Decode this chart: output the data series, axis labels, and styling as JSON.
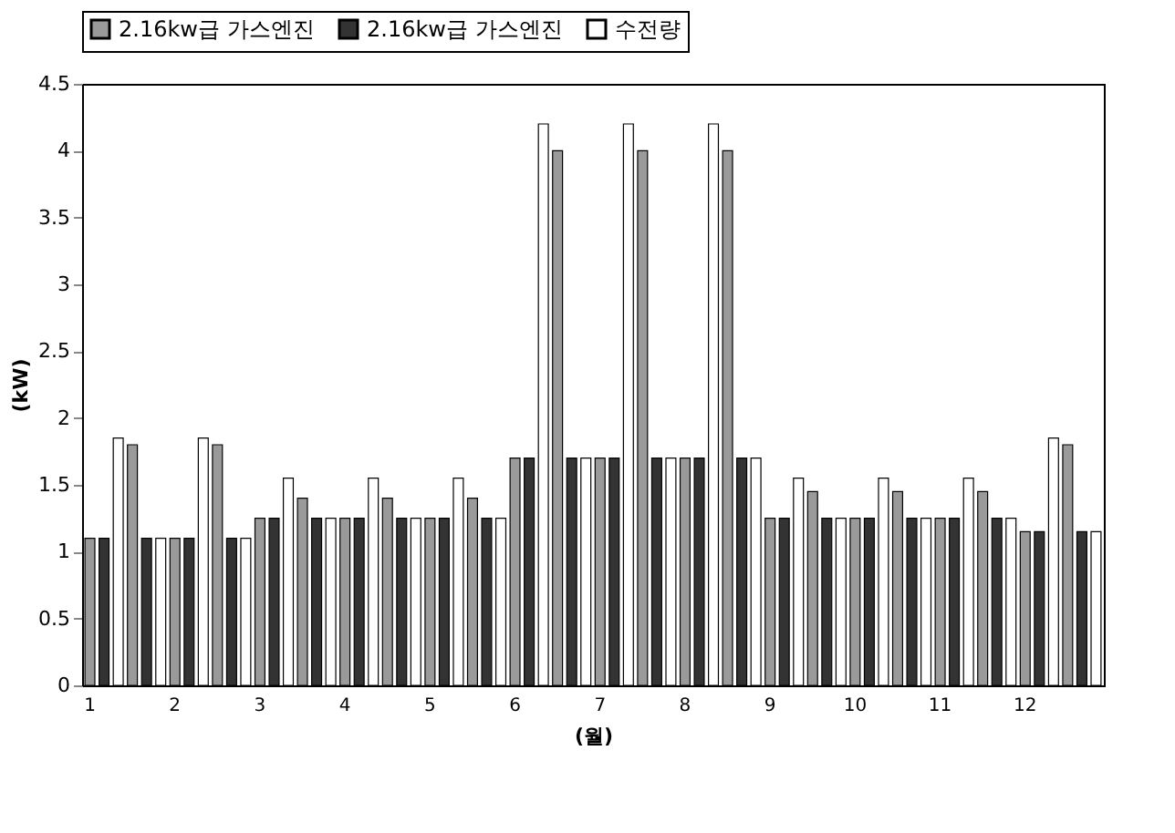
{
  "chart_data": {
    "type": "bar",
    "xlabel": "(월)",
    "ylabel": "(kW)",
    "categories": [
      "1",
      null,
      null,
      null,
      null,
      null,
      "2",
      null,
      null,
      null,
      null,
      null,
      "3",
      null,
      null,
      null,
      null,
      null,
      "4",
      null,
      null,
      null,
      null,
      null,
      "5",
      null,
      null,
      null,
      null,
      null,
      "6",
      null,
      null,
      null,
      null,
      null,
      "7",
      null,
      null,
      null,
      null,
      null,
      "8",
      null,
      null,
      null,
      null,
      null,
      "9",
      null,
      null,
      null,
      null,
      null,
      "10",
      null,
      null,
      null,
      null,
      null,
      "11",
      null,
      null,
      null,
      null,
      null,
      "12",
      null,
      null,
      null,
      null,
      null
    ],
    "series": [
      {
        "name": "2.16kw급 가스엔진",
        "color": "#9a9a9a",
        "values": [
          1.1,
          null,
          null,
          1.8,
          null,
          null,
          1.1,
          null,
          null,
          1.8,
          null,
          null,
          1.25,
          null,
          null,
          1.4,
          null,
          null,
          1.25,
          null,
          null,
          1.4,
          null,
          null,
          1.25,
          null,
          null,
          1.4,
          null,
          null,
          1.7,
          null,
          null,
          4.0,
          null,
          null,
          1.7,
          null,
          null,
          4.0,
          null,
          null,
          1.7,
          null,
          null,
          4.0,
          null,
          null,
          1.25,
          null,
          null,
          1.45,
          null,
          null,
          1.25,
          null,
          null,
          1.45,
          null,
          null,
          1.25,
          null,
          null,
          1.45,
          null,
          null,
          1.15,
          null,
          null,
          1.8,
          null,
          null
        ]
      },
      {
        "name": "2.16kw급 가스엔진",
        "color": "#333333",
        "values": [
          null,
          1.1,
          null,
          null,
          1.1,
          null,
          null,
          1.1,
          null,
          null,
          1.1,
          null,
          null,
          1.25,
          null,
          null,
          1.25,
          null,
          null,
          1.25,
          null,
          null,
          1.25,
          null,
          null,
          1.25,
          null,
          null,
          1.25,
          null,
          null,
          1.7,
          null,
          null,
          1.7,
          null,
          null,
          1.7,
          null,
          null,
          1.7,
          null,
          null,
          1.7,
          null,
          null,
          1.7,
          null,
          null,
          1.25,
          null,
          null,
          1.25,
          null,
          null,
          1.25,
          null,
          null,
          1.25,
          null,
          null,
          1.25,
          null,
          null,
          1.25,
          null,
          null,
          1.15,
          null,
          null,
          1.15,
          null
        ]
      },
      {
        "name": "수전량",
        "color": "#ffffff",
        "values": [
          null,
          null,
          1.85,
          null,
          null,
          1.1,
          null,
          null,
          1.85,
          null,
          null,
          1.1,
          null,
          null,
          1.55,
          null,
          null,
          1.25,
          null,
          null,
          1.55,
          null,
          null,
          1.25,
          null,
          null,
          1.55,
          null,
          null,
          1.25,
          null,
          null,
          4.2,
          null,
          null,
          1.7,
          null,
          null,
          4.2,
          null,
          null,
          1.7,
          null,
          null,
          4.2,
          null,
          null,
          1.7,
          null,
          null,
          1.55,
          null,
          null,
          1.25,
          null,
          null,
          1.55,
          null,
          null,
          1.25,
          null,
          null,
          1.55,
          null,
          null,
          1.25,
          null,
          null,
          1.85,
          null,
          null,
          1.15
        ]
      }
    ],
    "ylim": [
      0,
      4.5
    ],
    "yticks": [
      0,
      0.5,
      1,
      1.5,
      2,
      2.5,
      3,
      3.5,
      4,
      4.5
    ],
    "grid": false,
    "legend": "top"
  }
}
